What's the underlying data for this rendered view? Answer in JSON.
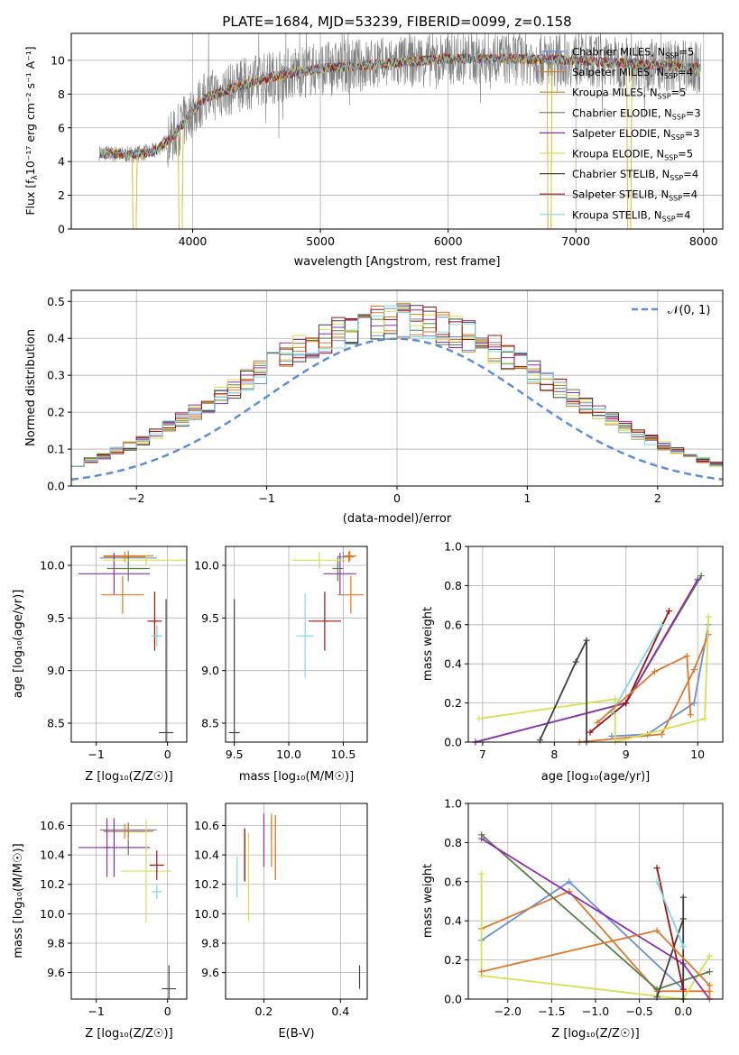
{
  "figure_title": "PLATE=1684, MJD=53239, FIBERID=0099, z=0.158",
  "palette": [
    "#5e8fd6",
    "#e8842c",
    "#d48a00",
    "#5f8a4a",
    "#8e2fb0",
    "#d8e050",
    "#404040",
    "#aa1010",
    "#7fd8e0"
  ],
  "models": [
    {
      "name": "Chabrier MILES",
      "nssp": "5",
      "color": "#6a8fd8"
    },
    {
      "name": "Salpeter MILES",
      "nssp": "4",
      "color": "#e0782a"
    },
    {
      "name": "Kroupa MILES",
      "nssp": "5",
      "color": "#c88020"
    },
    {
      "name": "Chabrier ELODIE",
      "nssp": "3",
      "color": "#5a8048"
    },
    {
      "name": "Salpeter ELODIE",
      "nssp": "3",
      "color": "#8e2fb0"
    },
    {
      "name": "Kroupa ELODIE",
      "nssp": "5",
      "color": "#d8e050"
    },
    {
      "name": "Chabrier STELIB",
      "nssp": "4",
      "color": "#404040"
    },
    {
      "name": "Salpeter STELIB",
      "nssp": "4",
      "color": "#a01010"
    },
    {
      "name": "Kroupa STELIB",
      "nssp": "4",
      "color": "#80d8e0"
    }
  ],
  "chart_data": [
    {
      "id": "spectrum",
      "type": "line",
      "xlabel": "wavelength [Angstrom, rest frame]",
      "ylabel_main": "Flux [f",
      "ylabel_sub": "λ",
      "ylabel_rest": "10⁻¹⁷ erg cm⁻² s⁻¹ A⁻¹]",
      "xlim": [
        3050,
        8150
      ],
      "ylim": [
        0,
        11.6
      ],
      "xticks": [
        "4000",
        "5000",
        "6000",
        "7000",
        "8000"
      ],
      "xtick_vals": [
        4000,
        5000,
        6000,
        7000,
        8000
      ],
      "yticks": [
        "0",
        "2",
        "4",
        "6",
        "8",
        "10"
      ],
      "ytick_vals": [
        0,
        2,
        4,
        6,
        8,
        10
      ],
      "legend_position": "upper-right",
      "data_color": "#808080",
      "data_range": [
        3270,
        7980
      ],
      "continuum": [
        [
          3270,
          4.5
        ],
        [
          3500,
          4.4
        ],
        [
          3700,
          4.6
        ],
        [
          3850,
          5.5
        ],
        [
          3950,
          6.5
        ],
        [
          4000,
          7.0
        ],
        [
          4100,
          7.8
        ],
        [
          4300,
          8.3
        ],
        [
          4500,
          8.8
        ],
        [
          4800,
          9.3
        ],
        [
          5000,
          9.5
        ],
        [
          5500,
          9.8
        ],
        [
          6000,
          10.1
        ],
        [
          6500,
          10.1
        ],
        [
          7000,
          10.0
        ],
        [
          7500,
          9.8
        ],
        [
          8000,
          9.5
        ]
      ],
      "model_drops": [
        [
          3530,
          3560
        ],
        [
          3890,
          3920
        ],
        [
          6780,
          6810
        ],
        [
          7400,
          7430
        ]
      ]
    },
    {
      "id": "residuals",
      "type": "step-histogram",
      "xlabel": "(data-model)/error",
      "ylabel": "Normed distribution",
      "xlim": [
        -2.5,
        2.5
      ],
      "ylim": [
        0,
        0.53
      ],
      "xticks": [
        "−2",
        "−1",
        "0",
        "1",
        "2"
      ],
      "xtick_vals": [
        -2,
        -1,
        0,
        1,
        2
      ],
      "yticks": [
        "0.0",
        "0.1",
        "0.2",
        "0.3",
        "0.4",
        "0.5"
      ],
      "ytick_vals": [
        0,
        0.1,
        0.2,
        0.3,
        0.4,
        0.5
      ],
      "legend": {
        "label": "𝒩(0, 1)",
        "position": "upper-right",
        "style": "dashed",
        "color": "#5e8fd6"
      },
      "bin_width": 0.1,
      "gaussian": {
        "mean": 0,
        "sigma": 1
      }
    },
    {
      "id": "age_vs_Z",
      "type": "errorbar",
      "xlabel": "Z [log₁₀(Z/Z☉)]",
      "ylabel": "age  [log₁₀(age/yr)]",
      "xlim": [
        -1.35,
        0.27
      ],
      "ylim": [
        8.32,
        10.18
      ],
      "xticks": [
        "−1",
        "0"
      ],
      "xtick_vals": [
        -1,
        0
      ],
      "yticks": [
        "8.5",
        "9.0",
        "9.5",
        "10.0"
      ],
      "ytick_vals": [
        8.5,
        9.0,
        9.5,
        10.0
      ],
      "points": [
        {
          "x": -0.55,
          "xerr": 0.4,
          "y": 10.07,
          "yerr": 0.05,
          "c": 0
        },
        {
          "x": -0.6,
          "xerr": 0.3,
          "y": 10.08,
          "yerr": 0.05,
          "c": 1
        },
        {
          "x": -0.55,
          "xerr": 0.35,
          "y": 10.09,
          "yerr": 0.05,
          "c": 2
        },
        {
          "x": -0.55,
          "xerr": 0.3,
          "y": 9.97,
          "yerr": 0.12,
          "c": 3
        },
        {
          "x": -0.75,
          "xerr": 0.5,
          "y": 9.92,
          "yerr": 0.2,
          "c": 4
        },
        {
          "x": -0.3,
          "xerr": 0.6,
          "y": 10.05,
          "yerr": 0.05,
          "c": 5
        },
        {
          "x": -0.02,
          "xerr": 0.1,
          "y": 8.41,
          "yerr": 1.27,
          "c": 6
        },
        {
          "x": -0.18,
          "xerr": 0.1,
          "y": 9.47,
          "yerr": 0.28,
          "c": 7
        },
        {
          "x": -0.15,
          "xerr": 0.08,
          "y": 9.33,
          "yerr": 0.1,
          "c": 8
        },
        {
          "x": -0.63,
          "xerr": 0.3,
          "y": 9.72,
          "yerr": 0.18,
          "c": 1
        }
      ]
    },
    {
      "id": "age_vs_mass",
      "type": "errorbar",
      "xlabel": "mass [log₁₀(M/M☉)]",
      "ylabel": "",
      "xlim": [
        9.42,
        10.72
      ],
      "ylim": [
        8.32,
        10.18
      ],
      "xticks": [
        "9.5",
        "10.0",
        "10.5"
      ],
      "xtick_vals": [
        9.5,
        10.0,
        10.5
      ],
      "yticks": [
        "8.5",
        "9.0",
        "9.5",
        "10.0"
      ],
      "ytick_vals": [
        8.5,
        9.0,
        9.5,
        10.0
      ],
      "points": [
        {
          "x": 10.5,
          "xerr": 0.05,
          "y": 10.08,
          "yerr": 0.05,
          "c": 0
        },
        {
          "x": 10.55,
          "xerr": 0.05,
          "y": 10.08,
          "yerr": 0.05,
          "c": 1
        },
        {
          "x": 10.56,
          "xerr": 0.06,
          "y": 10.09,
          "yerr": 0.05,
          "c": 2
        },
        {
          "x": 10.45,
          "xerr": 0.05,
          "y": 9.97,
          "yerr": 0.12,
          "c": 3
        },
        {
          "x": 10.47,
          "xerr": 0.15,
          "y": 9.92,
          "yerr": 0.2,
          "c": 4
        },
        {
          "x": 10.28,
          "xerr": 0.25,
          "y": 10.05,
          "yerr": 0.08,
          "c": 5
        },
        {
          "x": 9.5,
          "xerr": 0.05,
          "y": 8.41,
          "yerr": 1.27,
          "c": 6
        },
        {
          "x": 10.33,
          "xerr": 0.15,
          "y": 9.47,
          "yerr": 0.28,
          "c": 7
        },
        {
          "x": 10.15,
          "xerr": 0.08,
          "y": 9.33,
          "yerr": 0.4,
          "c": 8
        },
        {
          "x": 10.57,
          "xerr": 0.12,
          "y": 9.72,
          "yerr": 0.18,
          "c": 1
        }
      ]
    },
    {
      "id": "weight_vs_age",
      "type": "line",
      "xlabel": "age  [log₁₀(age/yr)]",
      "ylabel": "mass weight",
      "xlim": [
        6.8,
        10.35
      ],
      "ylim": [
        0,
        1
      ],
      "xticks": [
        "7",
        "8",
        "9",
        "10"
      ],
      "xtick_vals": [
        7,
        8,
        9,
        10
      ],
      "yticks": [
        "0.0",
        "0.2",
        "0.4",
        "0.6",
        "0.8",
        "1.0"
      ],
      "ytick_vals": [
        0,
        0.2,
        0.4,
        0.6,
        0.8,
        1.0
      ],
      "series": [
        {
          "c": 0,
          "x": [
            8.8,
            9.3,
            9.95,
            10.15
          ],
          "y": [
            0.03,
            0.04,
            0.2,
            0.6
          ]
        },
        {
          "c": 1,
          "x": [
            8.35,
            9.5,
            9.95,
            10.15
          ],
          "y": [
            0.0,
            0.04,
            0.37,
            0.55
          ]
        },
        {
          "c": 5,
          "x": [
            6.95,
            8.85,
            8.85,
            10.1,
            10.15
          ],
          "y": [
            0.12,
            0.22,
            0.0,
            0.12,
            0.64
          ]
        },
        {
          "c": 3,
          "x": [
            6.9,
            9.0,
            10.05
          ],
          "y": [
            0.0,
            0.2,
            0.85
          ]
        },
        {
          "c": 4,
          "x": [
            6.9,
            9.0,
            10.0
          ],
          "y": [
            0.0,
            0.2,
            0.83
          ]
        },
        {
          "c": 6,
          "x": [
            7.8,
            8.3,
            8.45,
            8.45
          ],
          "y": [
            0.01,
            0.41,
            0.52,
            0.0
          ]
        },
        {
          "c": 7,
          "x": [
            8.5,
            9.0,
            9.6
          ],
          "y": [
            0.05,
            0.2,
            0.67
          ]
        },
        {
          "c": 8,
          "x": [
            8.8,
            9.5
          ],
          "y": [
            0.15,
            0.6
          ]
        },
        {
          "c": 1,
          "x": [
            8.6,
            9.4,
            9.85,
            9.9
          ],
          "y": [
            0.1,
            0.36,
            0.44,
            0.14
          ]
        }
      ]
    },
    {
      "id": "mass_vs_Z",
      "type": "errorbar",
      "xlabel": "Z [log₁₀(Z/Z☉)]",
      "ylabel": "mass [log₁₀(M/M☉)]",
      "xlim": [
        -1.35,
        0.27
      ],
      "ylim": [
        9.42,
        10.75
      ],
      "xticks": [
        "−1",
        "0"
      ],
      "xtick_vals": [
        -1,
        0
      ],
      "yticks": [
        "9.6",
        "9.8",
        "10.0",
        "10.2",
        "10.4",
        "10.6"
      ],
      "ytick_vals": [
        9.6,
        9.8,
        10.0,
        10.2,
        10.4,
        10.6
      ],
      "points": [
        {
          "x": -0.55,
          "xerr": 0.4,
          "y": 10.57,
          "yerr": 0.05,
          "c": 0
        },
        {
          "x": -0.6,
          "xerr": 0.3,
          "y": 10.56,
          "yerr": 0.05,
          "c": 1
        },
        {
          "x": -0.55,
          "xerr": 0.35,
          "y": 10.56,
          "yerr": 0.06,
          "c": 2
        },
        {
          "x": -0.55,
          "xerr": 0.3,
          "y": 10.45,
          "yerr": 0.05,
          "c": 3
        },
        {
          "x": -0.75,
          "xerr": 0.5,
          "y": 10.45,
          "yerr": 0.2,
          "c": 4
        },
        {
          "x": -0.3,
          "xerr": 0.35,
          "y": 10.29,
          "yerr": 0.35,
          "c": 5
        },
        {
          "x": 0.02,
          "xerr": 0.1,
          "y": 9.49,
          "yerr": 0.16,
          "c": 6
        },
        {
          "x": -0.15,
          "xerr": 0.1,
          "y": 10.33,
          "yerr": 0.1,
          "c": 7
        },
        {
          "x": -0.15,
          "xerr": 0.07,
          "y": 10.15,
          "yerr": 0.05,
          "c": 8
        },
        {
          "x": -0.85,
          "xerr": 0.05,
          "y": 10.45,
          "yerr": 0.2,
          "c": 4
        }
      ]
    },
    {
      "id": "mass_vs_EBV",
      "type": "errorbar",
      "xlabel": "E(B-V)",
      "ylabel": "",
      "xlim": [
        0.1,
        0.47
      ],
      "ylim": [
        9.42,
        10.75
      ],
      "xticks": [
        "0.2",
        "0.4"
      ],
      "xtick_vals": [
        0.2,
        0.4
      ],
      "yticks": [
        "9.6",
        "9.8",
        "10.0",
        "10.2",
        "10.4",
        "10.6"
      ],
      "ytick_vals": [
        9.6,
        9.8,
        10.0,
        10.2,
        10.4,
        10.6
      ],
      "points": [
        {
          "x": 0.22,
          "xerr": 0,
          "y": 10.57,
          "yerr": 0.07,
          "c": 0
        },
        {
          "x": 0.23,
          "xerr": 0,
          "y": 10.45,
          "yerr": 0.22,
          "c": 1
        },
        {
          "x": 0.22,
          "xerr": 0,
          "y": 10.5,
          "yerr": 0.18,
          "c": 2
        },
        {
          "x": 0.15,
          "xerr": 0,
          "y": 10.4,
          "yerr": 0.18,
          "c": 3
        },
        {
          "x": 0.2,
          "xerr": 0,
          "y": 10.5,
          "yerr": 0.18,
          "c": 4
        },
        {
          "x": 0.16,
          "xerr": 0,
          "y": 10.25,
          "yerr": 0.3,
          "c": 5
        },
        {
          "x": 0.45,
          "xerr": 0,
          "y": 9.57,
          "yerr": 0.08,
          "c": 6
        },
        {
          "x": 0.15,
          "xerr": 0,
          "y": 10.4,
          "yerr": 0.18,
          "c": 7
        },
        {
          "x": 0.13,
          "xerr": 0,
          "y": 10.25,
          "yerr": 0.14,
          "c": 8
        },
        {
          "x": 0.23,
          "xerr": 0,
          "y": 10.45,
          "yerr": 0.22,
          "c": 1
        }
      ]
    },
    {
      "id": "weight_vs_Z",
      "type": "line",
      "xlabel": "Z [log₁₀(Z/Z☉)]",
      "ylabel": "mass weight",
      "xlim": [
        -2.45,
        0.45
      ],
      "ylim": [
        0,
        1
      ],
      "xticks": [
        "−2.0",
        "−1.5",
        "−1.0",
        "−0.5",
        "0.0"
      ],
      "xtick_vals": [
        -2,
        -1.5,
        -1,
        -0.5,
        0
      ],
      "yticks": [
        "0.0",
        "0.2",
        "0.4",
        "0.6",
        "0.8",
        "1.0"
      ],
      "ytick_vals": [
        0,
        0.2,
        0.4,
        0.6,
        0.8,
        1.0
      ],
      "series": [
        {
          "c": 0,
          "x": [
            -2.3,
            -1.3,
            0.0,
            0.0
          ],
          "y": [
            0.3,
            0.6,
            0.05,
            0.2
          ]
        },
        {
          "c": 1,
          "x": [
            -2.3,
            -1.3,
            -0.3,
            0.3
          ],
          "y": [
            0.36,
            0.55,
            0.04,
            0.04
          ]
        },
        {
          "c": 5,
          "x": [
            -2.3,
            -2.3,
            0.0,
            0.3
          ],
          "y": [
            0.64,
            0.12,
            0.0,
            0.22
          ]
        },
        {
          "c": 3,
          "x": [
            -2.3,
            -0.3,
            0.3
          ],
          "y": [
            0.84,
            0.05,
            0.14
          ]
        },
        {
          "c": 4,
          "x": [
            -2.3,
            0.0,
            0.3
          ],
          "y": [
            0.82,
            0.18,
            0.0
          ]
        },
        {
          "c": 6,
          "x": [
            -0.3,
            0.0,
            0.0,
            0.0
          ],
          "y": [
            0.01,
            0.41,
            0.52,
            0.0
          ]
        },
        {
          "c": 7,
          "x": [
            -0.3,
            0.0
          ],
          "y": [
            0.67,
            0.05
          ]
        },
        {
          "c": 8,
          "x": [
            -0.3,
            0.0
          ],
          "y": [
            0.6,
            0.27
          ]
        },
        {
          "c": 1,
          "x": [
            -2.3,
            -0.3,
            0.3,
            0.3
          ],
          "y": [
            0.14,
            0.35,
            0.07,
            0.0
          ]
        }
      ]
    }
  ]
}
